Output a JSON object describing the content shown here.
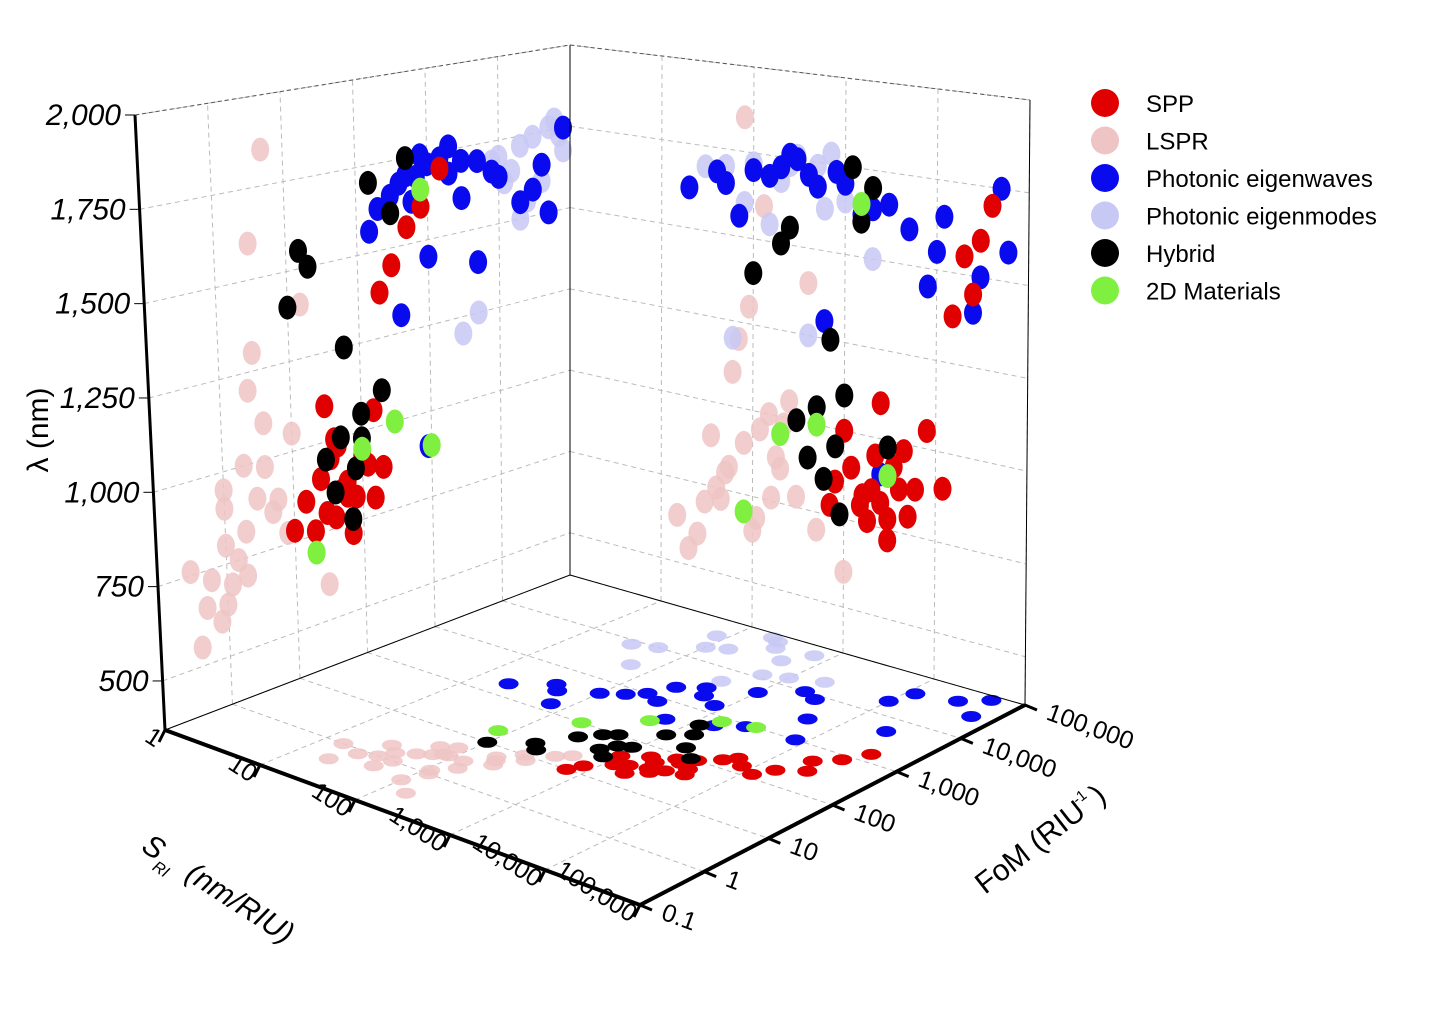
{
  "chart_data": {
    "type": "scatter",
    "subtype": "3d-scatter-with-wall-projections",
    "x_axis": {
      "label": "S",
      "label_sub": "RI",
      "label_unit": "(nm/RIU)",
      "scale": "log",
      "range": [
        1,
        100000
      ],
      "ticks": [
        "1",
        "10",
        "100",
        "1,000",
        "10,000",
        "100,000"
      ],
      "tick_values": [
        1,
        10,
        100,
        1000,
        10000,
        100000
      ]
    },
    "y_axis": {
      "label": "FoM (RIU",
      "label_sup": "-1",
      "label_close": ")",
      "scale": "log",
      "range": [
        0.1,
        100000
      ],
      "ticks": [
        "0.1",
        "1",
        "10",
        "100",
        "1,000",
        "10,000",
        "100,000"
      ],
      "tick_values": [
        0.1,
        1,
        10,
        100,
        1000,
        10000,
        100000
      ]
    },
    "z_axis": {
      "label": "λ (nm)",
      "scale": "linear",
      "range": [
        370,
        2000
      ],
      "ticks": [
        "500",
        "750",
        "1,000",
        "1,250",
        "1,500",
        "1,750",
        "2,000"
      ],
      "tick_values": [
        500,
        750,
        1000,
        1250,
        1500,
        1750,
        2000
      ]
    },
    "grid": true,
    "legend_position": "top-right",
    "series": [
      {
        "name": "SPP",
        "color": "#e00000",
        "opacity": 1,
        "points": [
          [
            1500,
            30,
            800
          ],
          [
            2000,
            50,
            850
          ],
          [
            3000,
            40,
            780
          ],
          [
            1200,
            25,
            900
          ],
          [
            2500,
            80,
            820
          ],
          [
            4000,
            60,
            870
          ],
          [
            1800,
            20,
            760
          ],
          [
            3500,
            100,
            930
          ],
          [
            5000,
            150,
            800
          ],
          [
            2200,
            35,
            950
          ],
          [
            800,
            15,
            850
          ],
          [
            6000,
            200,
            880
          ],
          [
            1000,
            40,
            1000
          ],
          [
            3000,
            70,
            720
          ],
          [
            2500,
            30,
            1100
          ],
          [
            20000,
            500,
            1550
          ],
          [
            25000,
            300,
            1450
          ],
          [
            15000,
            200,
            1380
          ],
          [
            8000,
            150,
            1050
          ],
          [
            30000,
            800,
            1600
          ],
          [
            4500,
            45,
            980
          ],
          [
            1600,
            60,
            830
          ],
          [
            700,
            10,
            780
          ],
          [
            40000,
            1500,
            1700
          ],
          [
            12000,
            120,
            900
          ]
        ]
      },
      {
        "name": "LSPR",
        "color": "#eec4c4",
        "opacity": 0.85,
        "points": [
          [
            30,
            2,
            700
          ],
          [
            50,
            1,
            800
          ],
          [
            80,
            3,
            900
          ],
          [
            100,
            0.5,
            650
          ],
          [
            150,
            2,
            1000
          ],
          [
            40,
            1.5,
            750
          ],
          [
            60,
            4,
            1100
          ],
          [
            200,
            5,
            850
          ],
          [
            120,
            1,
            950
          ],
          [
            25,
            0.8,
            600
          ],
          [
            70,
            2.5,
            1200
          ],
          [
            300,
            8,
            780
          ],
          [
            90,
            3,
            1300
          ],
          [
            45,
            0.6,
            720
          ],
          [
            180,
            6,
            880
          ],
          [
            20,
            0.4,
            550
          ],
          [
            250,
            10,
            1050
          ],
          [
            110,
            1.2,
            690
          ],
          [
            55,
            2,
            820
          ],
          [
            400,
            15,
            1400
          ],
          [
            130,
            3,
            1600
          ],
          [
            35,
            1,
            900
          ],
          [
            500,
            20,
            700
          ],
          [
            80,
            5,
            1850
          ],
          [
            160,
            0.3,
            760
          ],
          [
            220,
            4,
            980
          ],
          [
            15,
            1,
            640
          ],
          [
            1000,
            30,
            600
          ]
        ]
      },
      {
        "name": "Photonic eigenwaves",
        "color": "#0a0aee",
        "opacity": 1,
        "points": [
          [
            100,
            500,
            1700
          ],
          [
            200,
            1000,
            1720
          ],
          [
            500,
            2000,
            1680
          ],
          [
            1000,
            5000,
            1700
          ],
          [
            50,
            300,
            1650
          ],
          [
            2000,
            10000,
            1640
          ],
          [
            300,
            800,
            1750
          ],
          [
            5000,
            3000,
            1600
          ],
          [
            10000,
            20000,
            1550
          ],
          [
            30000,
            50000,
            1500
          ],
          [
            20,
            200,
            1620
          ],
          [
            150,
            700,
            1690
          ],
          [
            800,
            1500,
            1730
          ],
          [
            3000,
            8000,
            1660
          ],
          [
            60000,
            30000,
            1580
          ],
          [
            40,
            400,
            1680
          ],
          [
            400,
            3000,
            1710
          ],
          [
            1500,
            600,
            1620
          ],
          [
            8000,
            1000,
            1450
          ],
          [
            25000,
            5000,
            1400
          ],
          [
            70,
            150,
            1560
          ],
          [
            250,
            2000,
            1760
          ],
          [
            600,
            400,
            1300
          ],
          [
            12000,
            40000,
            1650
          ],
          [
            2500,
            900,
            900
          ],
          [
            50000,
            80000,
            1750
          ]
        ]
      },
      {
        "name": "Photonic eigenmodes",
        "color": "#c8c8f5",
        "opacity": 0.85,
        "points": [
          [
            100,
            20000,
            1720
          ],
          [
            300,
            50000,
            1760
          ],
          [
            50,
            10000,
            1700
          ],
          [
            500,
            30000,
            1740
          ],
          [
            200,
            80000,
            1680
          ],
          [
            1000,
            15000,
            1650
          ],
          [
            80,
            40000,
            1600
          ],
          [
            700,
            60000,
            1780
          ],
          [
            150,
            25000,
            1550
          ],
          [
            400,
            5000,
            1250
          ],
          [
            30,
            8000,
            1690
          ],
          [
            2000,
            20000,
            1500
          ],
          [
            250,
            70000,
            1730
          ],
          [
            60,
            3000,
            1200
          ],
          [
            600,
            12000,
            1620
          ]
        ]
      },
      {
        "name": "Hybrid",
        "color": "#000000",
        "opacity": 1,
        "points": [
          [
            300,
            50,
            1000
          ],
          [
            500,
            100,
            1050
          ],
          [
            800,
            30,
            950
          ],
          [
            1000,
            200,
            1100
          ],
          [
            400,
            80,
            900
          ],
          [
            200,
            20,
            1500
          ],
          [
            1500,
            300,
            1600
          ],
          [
            700,
            60,
            1250
          ],
          [
            2000,
            150,
            1700
          ],
          [
            100,
            10,
            1400
          ],
          [
            600,
            40,
            850
          ],
          [
            1200,
            500,
            1750
          ],
          [
            3000,
            100,
            980
          ],
          [
            250,
            15,
            1550
          ],
          [
            900,
            70,
            760
          ]
        ]
      },
      {
        "name": "2D Materials",
        "color": "#80f040",
        "opacity": 1,
        "points": [
          [
            200,
            100,
            950
          ],
          [
            500,
            300,
            1000
          ],
          [
            80,
            20,
            700
          ],
          [
            1500,
            800,
            1650
          ],
          [
            3000,
            1000,
            900
          ]
        ]
      }
    ]
  }
}
